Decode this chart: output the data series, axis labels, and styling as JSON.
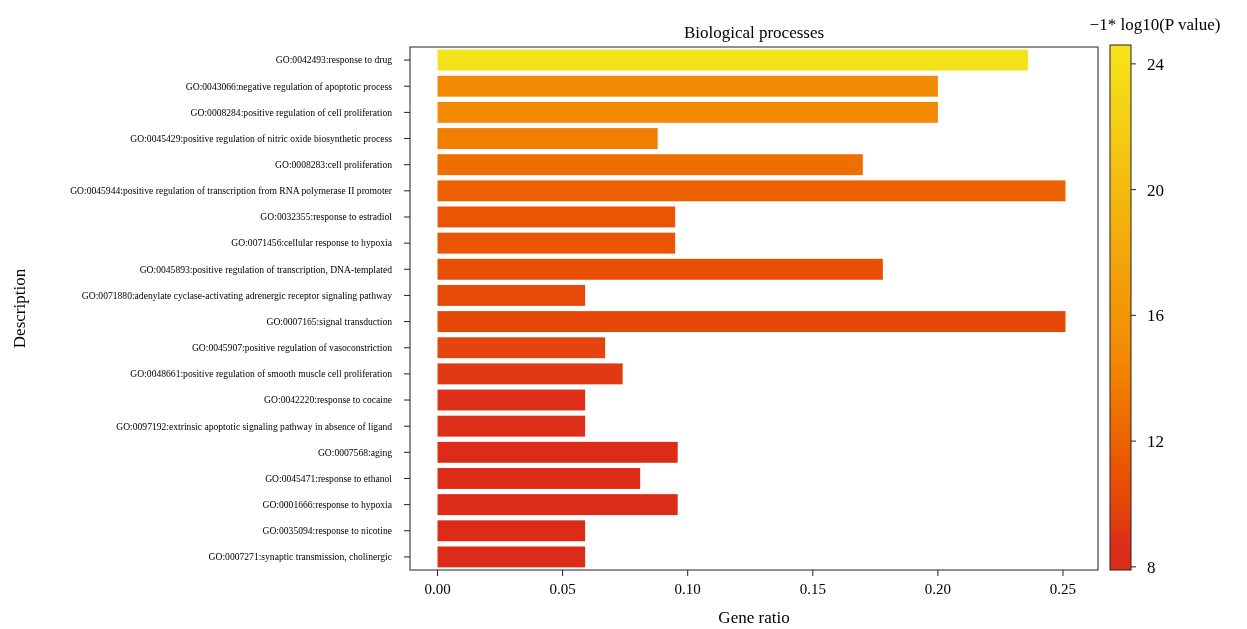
{
  "chart_data": {
    "type": "bar",
    "orientation": "horizontal",
    "title": "Biological processes",
    "xlabel": "Gene ratio",
    "ylabel": "Description",
    "clabel": "−1* log10(P value)",
    "categories": [
      "GO:0042493:response to drug",
      "GO:0043066:negative regulation of apoptotic process",
      "GO:0008284:positive regulation of cell proliferation",
      "GO:0045429:positive regulation of nitric oxide biosynthetic process",
      "GO:0008283:cell proliferation",
      "GO:0045944:positive regulation of transcription from RNA polymerase II promoter",
      "GO:0032355:response to estradiol",
      "GO:0071456:cellular response to hypoxia",
      "GO:0045893:positive regulation of transcription, DNA-templated",
      "GO:0071880:adenylate cyclase-activating adrenergic receptor signaling pathway",
      "GO:0007165:signal transduction",
      "GO:0045907:positive regulation of vasoconstriction",
      "GO:0048661:positive regulation of smooth muscle cell proliferation",
      "GO:0042220:response to cocaine",
      "GO:0097192:extrinsic apoptotic signaling pathway in absence of ligand",
      "GO:0007568:aging",
      "GO:0045471:response to ethanol",
      "GO:0001666:response to hypoxia",
      "GO:0035094:response to nicotine",
      "GO:0007271:synaptic transmission, cholinergic"
    ],
    "values": [
      0.236,
      0.2,
      0.2,
      0.088,
      0.17,
      0.251,
      0.095,
      0.095,
      0.178,
      0.059,
      0.251,
      0.067,
      0.074,
      0.059,
      0.059,
      0.096,
      0.081,
      0.096,
      0.059,
      0.059
    ],
    "cvalues": [
      24.4,
      14.8,
      14.8,
      13.8,
      12.8,
      12,
      11.2,
      11.2,
      10.7,
      10.3,
      10.1,
      9.8,
      9.3,
      8.9,
      8.9,
      8.4,
      8.4,
      8.3,
      8.2,
      8.2
    ],
    "colors": [
      "#f5e31a",
      "#f28a04",
      "#f28a04",
      "#f07e00",
      "#ee6e00",
      "#ec6200",
      "#ea5505",
      "#ea5505",
      "#e84e05",
      "#e64a08",
      "#e64808",
      "#e44410",
      "#e03a12",
      "#de3018",
      "#de3018",
      "#dc2c18",
      "#dc2c18",
      "#dc2c18",
      "#dc2c18",
      "#dc2c18"
    ],
    "xlim": [
      -0.011,
      0.264
    ],
    "xticks": [
      {
        "value": 0,
        "label": "0.00"
      },
      {
        "value": 0.05,
        "label": "0.05"
      },
      {
        "value": 0.1,
        "label": "0.10"
      },
      {
        "value": 0.15,
        "label": "0.15"
      },
      {
        "value": 0.2,
        "label": "0.20"
      },
      {
        "value": 0.25,
        "label": "0.25"
      }
    ],
    "clim": [
      7.9,
      24.6
    ],
    "cticks": [
      8,
      12,
      16,
      20,
      24
    ],
    "grid": false
  }
}
